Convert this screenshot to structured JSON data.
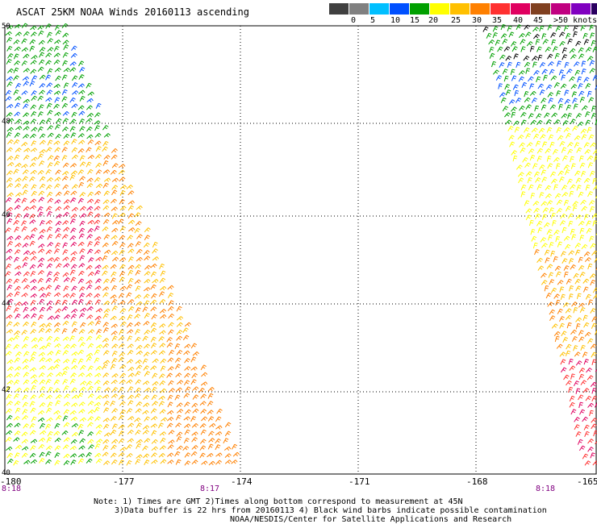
{
  "title": "ASCAT 25KM NOAA Winds 20160113 ascending",
  "scale": {
    "colors": [
      "#404040",
      "#808080",
      "#00bfff",
      "#0050ff",
      "#00a000",
      "#ffff00",
      "#ffc000",
      "#ff8000",
      "#ff3030",
      "#e00060",
      "#804020",
      "#c00080",
      "#8000c0",
      "#2a0060"
    ],
    "labels": [
      "0",
      "5",
      "10",
      "15",
      "20",
      "25",
      "30",
      "35",
      "40",
      "45",
      ">50 knots"
    ]
  },
  "map": {
    "lat_labels": [
      "50",
      "48",
      "46",
      "44",
      "42",
      "40"
    ],
    "lon_labels": [
      "-180",
      "-177",
      "-174",
      "-171",
      "-168",
      "-165"
    ],
    "time_labels": [
      "8:18",
      "8:17",
      "8:18"
    ]
  },
  "notes": {
    "line1": "Note: 1) Times are GMT 2)Times along bottom correspond to measurement at 45N",
    "line2": "3)Data buffer is 22 hrs from 20160113 4) Black wind barbs indicate possible contamination",
    "line3": "NOAA/NESDIS/Center for Satellite Applications and Research"
  },
  "colors": {
    "grid": "#000000",
    "time": "#800080"
  }
}
